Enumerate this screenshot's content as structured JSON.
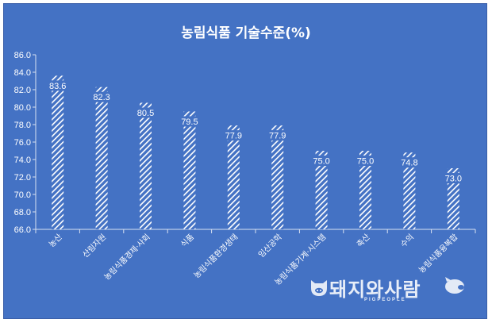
{
  "chart_data": {
    "type": "bar",
    "title": "농림식품 기술수준(%)",
    "categories": [
      "농산",
      "산림자원",
      "농림식품경제·사회",
      "식품",
      "농림식품환경생태",
      "임산공학",
      "농림식품기계·시스템",
      "축산",
      "수의",
      "농림식품융복합"
    ],
    "values": [
      83.6,
      82.3,
      80.5,
      79.5,
      77.9,
      77.9,
      75.0,
      75.0,
      74.8,
      73.0
    ],
    "value_labels": [
      "83.6",
      "82.3",
      "80.5",
      "79.5",
      "77.9",
      "77.9",
      "75.0",
      "75.0",
      "74.8",
      "73.0"
    ],
    "yticks": [
      "66.0",
      "68.0",
      "70.0",
      "72.0",
      "74.0",
      "76.0",
      "78.0",
      "80.0",
      "82.0",
      "84.0",
      "86.0"
    ],
    "ylim": [
      66,
      86
    ],
    "grid": false,
    "legend": "none",
    "bar_pattern": "diagonal-hatch",
    "colors": {
      "background": "#4472c4",
      "bars": "#ffffff",
      "text": "#ffffff"
    }
  },
  "watermark": {
    "text": "돼지와사람",
    "subtext": "PIGPEOPLE"
  }
}
